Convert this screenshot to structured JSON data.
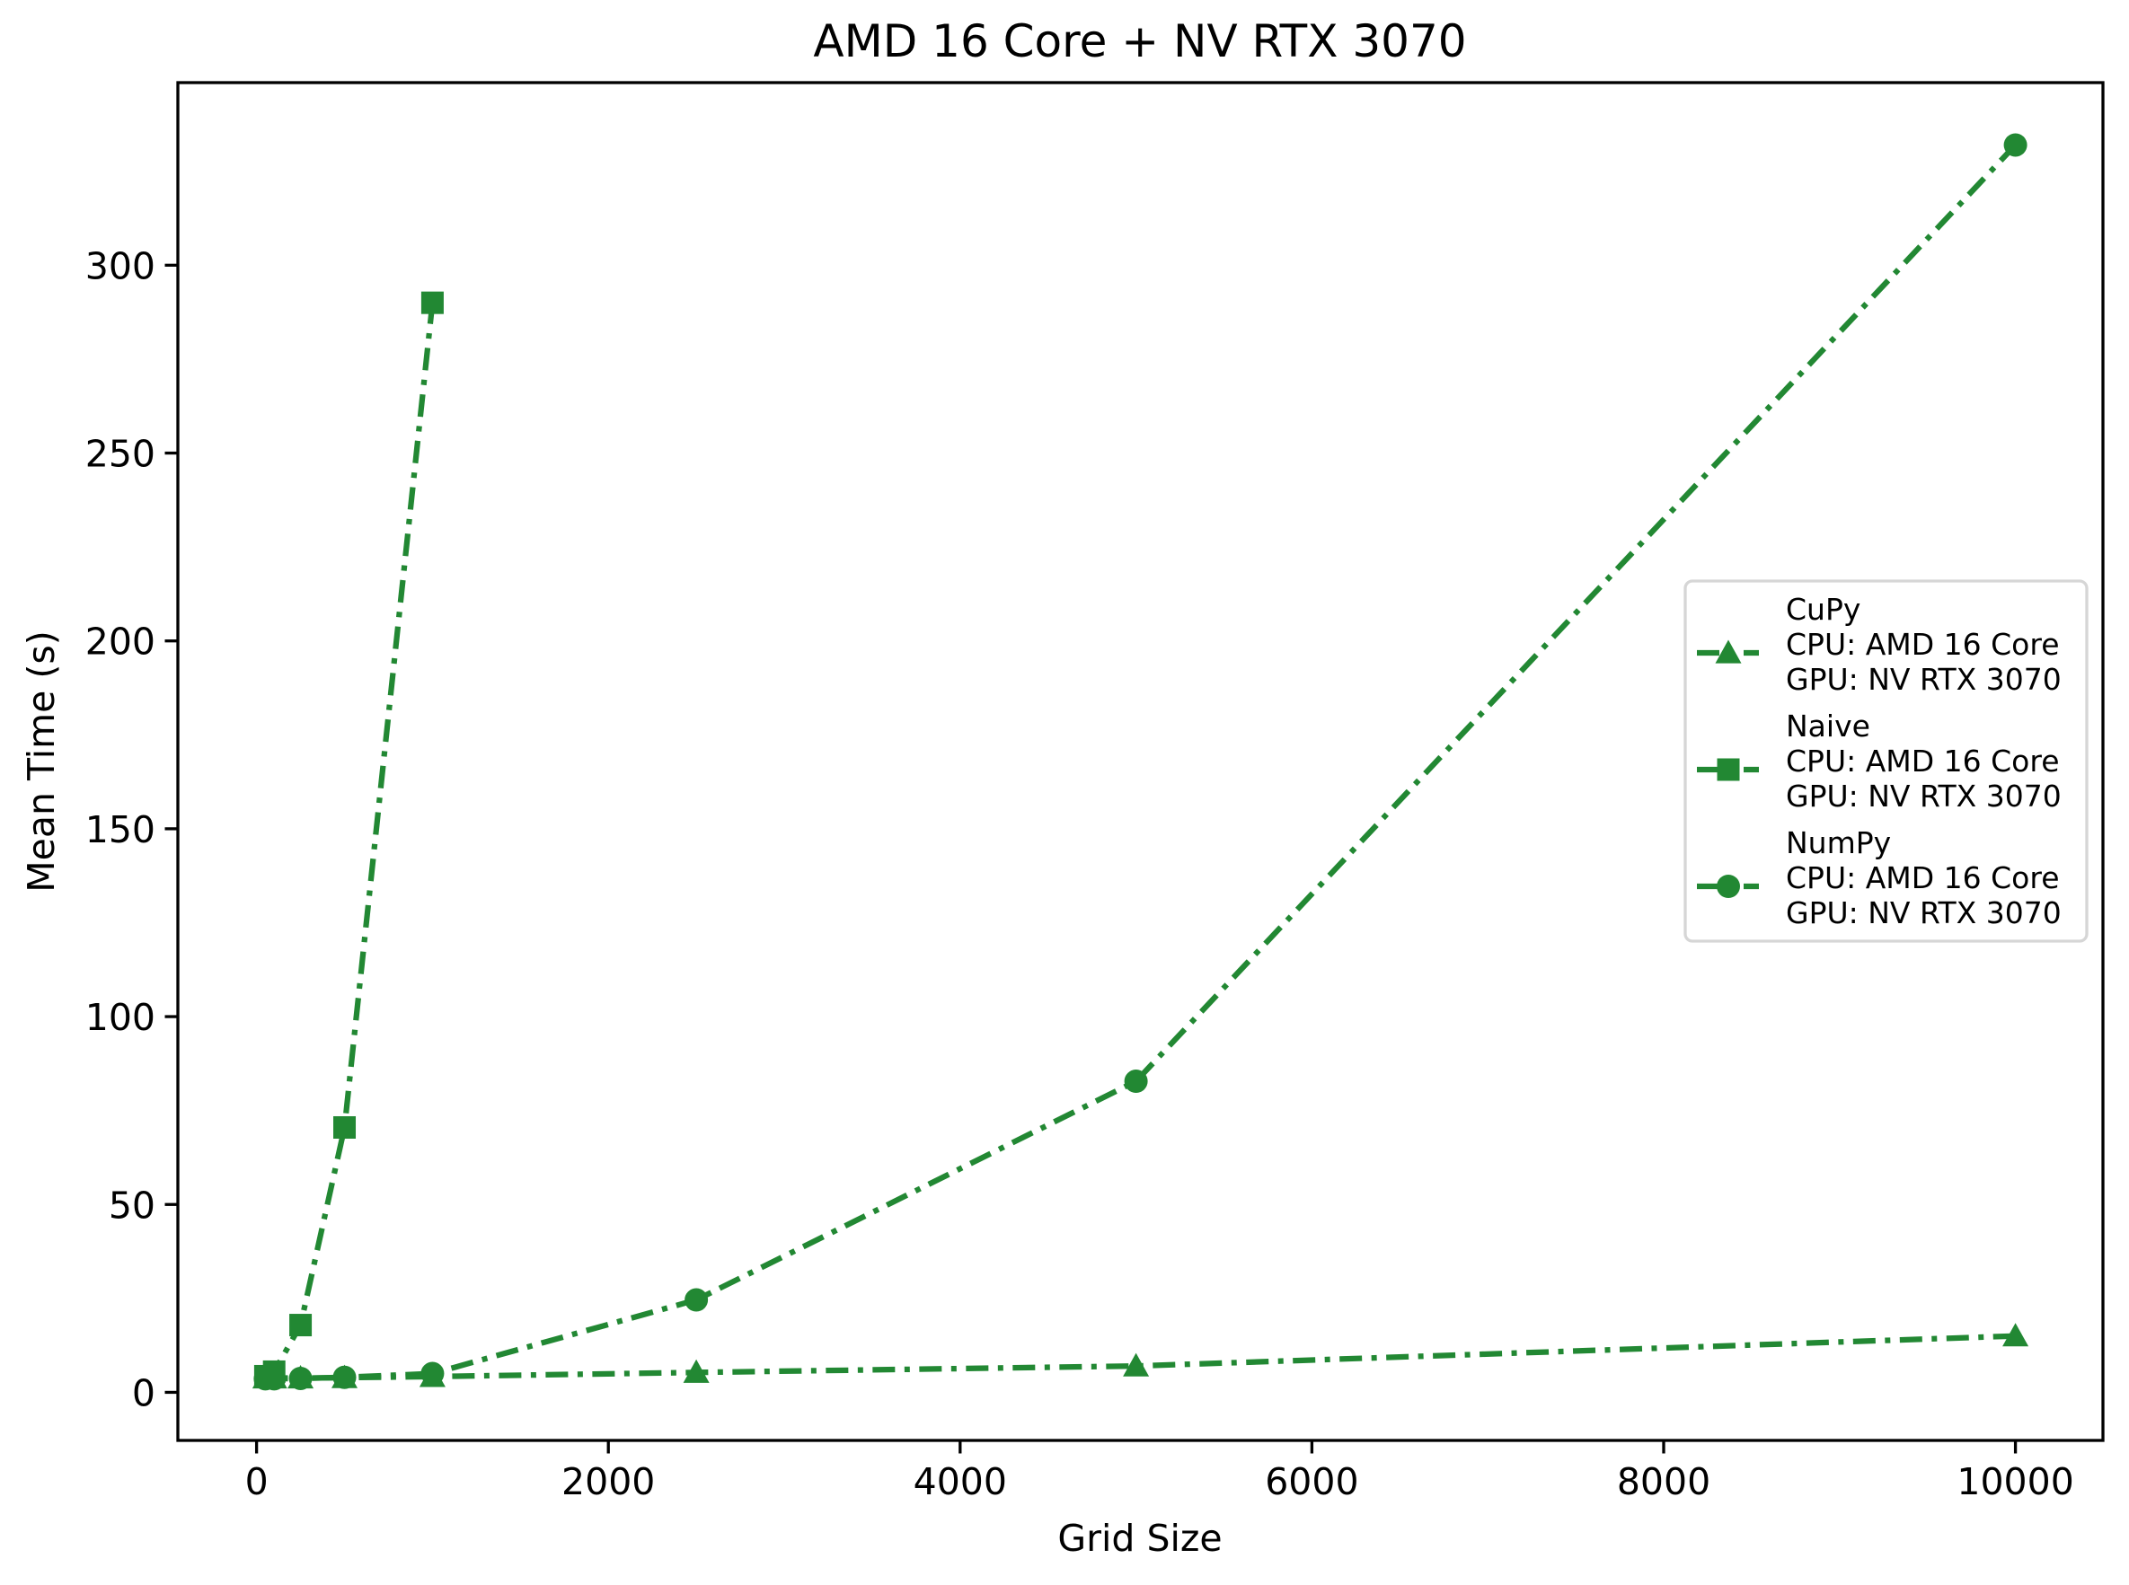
{
  "chart_data": {
    "type": "line",
    "title": "AMD 16 Core + NV RTX 3070",
    "xlabel": "Grid Size",
    "ylabel": "Mean Time (s)",
    "xlim": [
      -447.5,
      10497.5
    ],
    "ylim": [
      -12.8,
      348.6
    ],
    "xticks": [
      0,
      2000,
      4000,
      6000,
      8000,
      10000
    ],
    "xtick_labels": [
      "0",
      "2000",
      "4000",
      "6000",
      "8000",
      "10000"
    ],
    "yticks": [
      0,
      50,
      100,
      150,
      200,
      250,
      300
    ],
    "ytick_labels": [
      "0",
      "50",
      "100",
      "150",
      "200",
      "250",
      "300"
    ],
    "grid": false,
    "legend_position": "center-right",
    "color": "#228833",
    "line_style": "dash-dot",
    "series": [
      {
        "name": "CuPy",
        "legend_lines": [
          "CuPy",
          "CPU: AMD 16 Core",
          "GPU: NV RTX 3070"
        ],
        "marker": "triangle",
        "x": [
          50,
          100,
          250,
          500,
          1000,
          2500,
          5000,
          10000
        ],
        "values": [
          3.8,
          3.8,
          3.8,
          3.9,
          4.2,
          5.3,
          7.0,
          15.0
        ]
      },
      {
        "name": "Naive",
        "legend_lines": [
          "Naive",
          "CPU: AMD 16 Core",
          "GPU: NV RTX 3070"
        ],
        "marker": "square",
        "x": [
          50,
          100,
          250,
          500,
          1000
        ],
        "values": [
          4.3,
          5.5,
          17.9,
          70.5,
          290.0
        ]
      },
      {
        "name": "NumPy",
        "legend_lines": [
          "NumPy",
          "CPU: AMD 16 Core",
          "GPU: NV RTX 3070"
        ],
        "marker": "circle",
        "x": [
          50,
          100,
          250,
          500,
          1000,
          2500,
          5000,
          10000
        ],
        "values": [
          3.6,
          3.6,
          3.7,
          4.0,
          5.0,
          24.6,
          82.8,
          332.0
        ]
      }
    ]
  }
}
